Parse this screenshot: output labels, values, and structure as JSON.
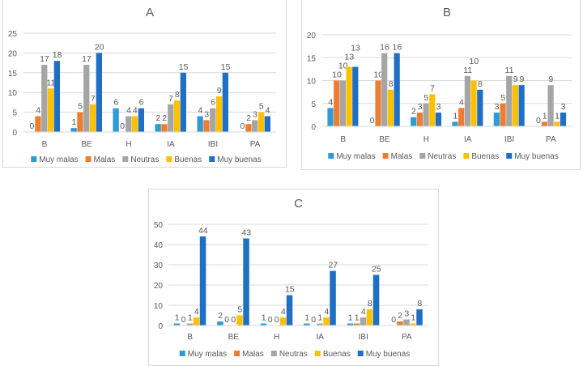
{
  "chart_data": [
    {
      "type": "bar",
      "title": "A",
      "categories": [
        "B",
        "BE",
        "H",
        "IA",
        "IBI",
        "PA"
      ],
      "ylim": [
        0,
        25
      ],
      "yticks": [
        0,
        5,
        10,
        15,
        20,
        25
      ],
      "grid": true,
      "legend_position": "bottom",
      "series": [
        {
          "name": "Muy malas",
          "color": "#2e9bd6",
          "values": [
            0,
            1,
            6,
            2,
            4,
            0
          ]
        },
        {
          "name": "Malas",
          "color": "#ed7d31",
          "values": [
            4,
            5,
            0,
            2,
            3,
            2
          ]
        },
        {
          "name": "Neutras",
          "color": "#a5a5a5",
          "values": [
            17,
            17,
            4,
            7,
            6,
            3
          ]
        },
        {
          "name": "Buenas",
          "color": "#ffc000",
          "values": [
            11,
            7,
            4,
            8,
            9,
            5
          ]
        },
        {
          "name": "Muy buenas",
          "color": "#1f6fc5",
          "values": [
            18,
            20,
            6,
            15,
            15,
            4
          ]
        }
      ]
    },
    {
      "type": "bar",
      "title": "B",
      "categories": [
        "B",
        "BE",
        "H",
        "IA",
        "IBI",
        "PA"
      ],
      "ylim": [
        0,
        20
      ],
      "yticks": [
        0,
        5,
        10,
        15,
        20
      ],
      "grid": true,
      "legend_position": "bottom",
      "series": [
        {
          "name": "Muy malas",
          "color": "#2e9bd6",
          "values": [
            4,
            0,
            2,
            1,
            3,
            0
          ]
        },
        {
          "name": "Malas",
          "color": "#ed7d31",
          "values": [
            10,
            10,
            3,
            4,
            5,
            1
          ]
        },
        {
          "name": "Neutras",
          "color": "#a5a5a5",
          "values": [
            10,
            16,
            5,
            11,
            11,
            9
          ]
        },
        {
          "name": "Buenas",
          "color": "#ffc000",
          "values": [
            13,
            8,
            7,
            10,
            9,
            1
          ]
        },
        {
          "name": "Muy buenas",
          "color": "#1f6fc5",
          "values": [
            13,
            16,
            3,
            8,
            9,
            3
          ]
        }
      ]
    },
    {
      "type": "bar",
      "title": "C",
      "categories": [
        "B",
        "BE",
        "H",
        "IA",
        "IBI",
        "PA"
      ],
      "ylim": [
        0,
        50
      ],
      "yticks": [
        0,
        10,
        20,
        30,
        40,
        50
      ],
      "grid": true,
      "legend_position": "bottom",
      "series": [
        {
          "name": "Muy malas",
          "color": "#2e9bd6",
          "values": [
            1,
            2,
            1,
            1,
            1,
            0
          ]
        },
        {
          "name": "Malas",
          "color": "#ed7d31",
          "values": [
            0,
            0,
            0,
            0,
            1,
            2
          ]
        },
        {
          "name": "Neutras",
          "color": "#a5a5a5",
          "values": [
            1,
            0,
            0,
            1,
            4,
            3
          ]
        },
        {
          "name": "Buenas",
          "color": "#ffc000",
          "values": [
            4,
            5,
            4,
            4,
            8,
            1
          ]
        },
        {
          "name": "Muy buenas",
          "color": "#1f6fc5",
          "values": [
            44,
            43,
            15,
            27,
            25,
            8
          ]
        }
      ]
    }
  ]
}
